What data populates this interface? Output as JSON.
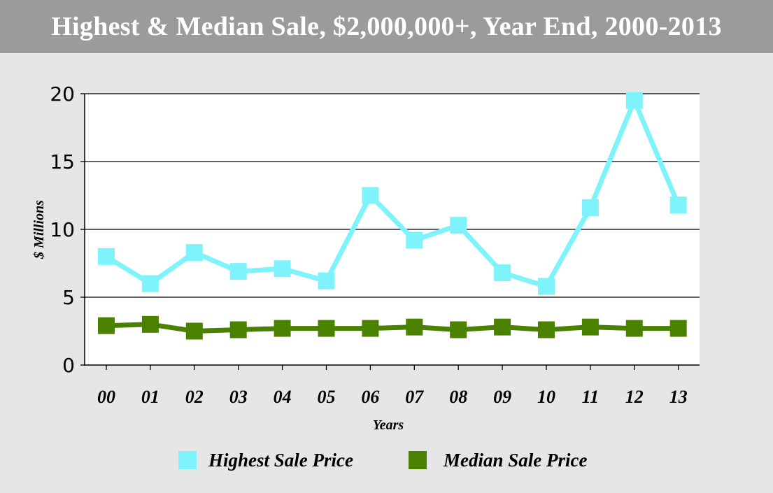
{
  "header": {
    "title": "Highest & Median Sale, $2,000,000+, Year End, 2000-2013"
  },
  "chart_data": {
    "type": "line",
    "title": "Highest & Median Sale, $2,000,000+, Year End, 2000-2013",
    "xlabel": "Years",
    "ylabel": "$ Millions",
    "categories": [
      "00",
      "01",
      "02",
      "03",
      "04",
      "05",
      "06",
      "07",
      "08",
      "09",
      "10",
      "11",
      "12",
      "13"
    ],
    "ylim": [
      0,
      20
    ],
    "yticks": [
      0,
      5,
      10,
      15,
      20
    ],
    "grid": true,
    "legend_position": "bottom",
    "series": [
      {
        "name": "Highest Sale Price",
        "color": "#7ff3fb",
        "values": [
          8.0,
          6.0,
          8.3,
          6.9,
          7.1,
          6.2,
          12.5,
          9.2,
          10.3,
          6.8,
          5.8,
          11.6,
          19.5,
          11.8
        ]
      },
      {
        "name": "Median Sale Price",
        "color": "#4a8200",
        "values": [
          2.9,
          3.0,
          2.5,
          2.6,
          2.7,
          2.7,
          2.7,
          2.8,
          2.6,
          2.8,
          2.6,
          2.8,
          2.7,
          2.7
        ]
      }
    ]
  }
}
